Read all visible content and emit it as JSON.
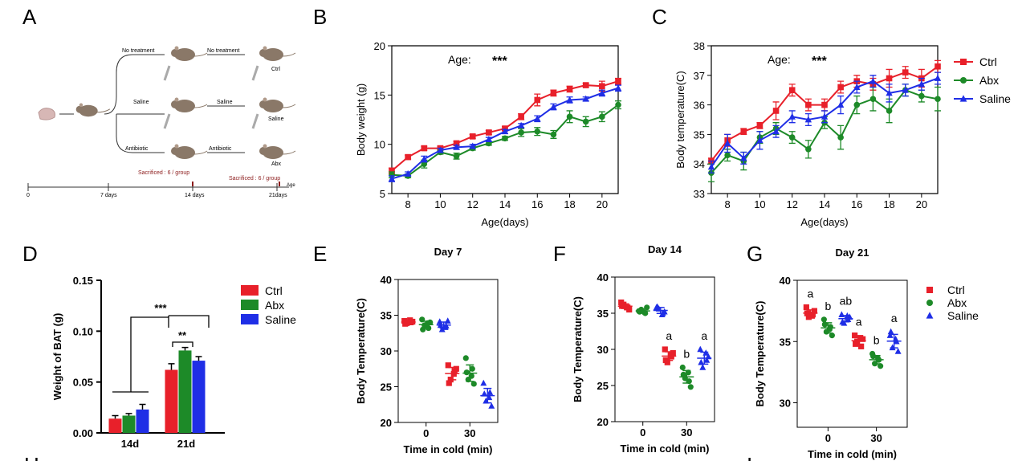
{
  "colors": {
    "ctrl": "#e8202a",
    "abx": "#1d8a28",
    "saline": "#1f2ee6",
    "axis": "#000000",
    "mouse": "#8a7868",
    "sac": "#8b1a1a"
  },
  "panels": {
    "A": "A",
    "B": "B",
    "C": "C",
    "D": "D",
    "E": "E",
    "F": "F",
    "G": "G",
    "H": "H",
    "I": "I"
  },
  "schematic": {
    "labels": {
      "no_treatment": "No treatment",
      "saline": "Saline",
      "antibiotic": "Antibiotic",
      "ctrl": "Ctrl",
      "abx": "Abx",
      "age": "Age"
    },
    "sacrificed": "Sacrificed : 6 / group",
    "timeline": [
      "0",
      "7 days",
      "14 days",
      "21days"
    ]
  },
  "chart_data": [
    {
      "id": "B",
      "type": "line",
      "xlabel": "Age(days)",
      "ylabel": "Body weight (g)",
      "xlim": [
        7,
        21
      ],
      "ylim": [
        5,
        20
      ],
      "xticks": [
        8,
        10,
        12,
        14,
        16,
        18,
        20
      ],
      "yticks": [
        5,
        10,
        15,
        20
      ],
      "annotation": {
        "label": "Age:",
        "stars": "***"
      },
      "x": [
        7,
        8,
        9,
        10,
        11,
        12,
        13,
        14,
        15,
        16,
        17,
        18,
        19,
        20,
        21
      ],
      "series": [
        {
          "name": "Ctrl",
          "values": [
            7.3,
            8.7,
            9.6,
            9.6,
            10.1,
            10.8,
            11.2,
            11.6,
            12.8,
            14.5,
            15.2,
            15.6,
            16.0,
            15.9,
            16.4
          ],
          "err": [
            0.3,
            0.2,
            0.2,
            0.2,
            0.2,
            0.2,
            0.2,
            0.2,
            0.3,
            0.6,
            0.3,
            0.3,
            0.2,
            0.5,
            0.3
          ]
        },
        {
          "name": "Abx",
          "values": [
            6.9,
            6.8,
            8.0,
            9.2,
            8.8,
            9.6,
            10.1,
            10.6,
            11.2,
            11.3,
            11.0,
            12.8,
            12.3,
            12.8,
            14.0
          ],
          "err": [
            0.3,
            0.2,
            0.4,
            0.2,
            0.3,
            0.2,
            0.2,
            0.2,
            0.4,
            0.4,
            0.4,
            0.6,
            0.5,
            0.5,
            0.4
          ]
        },
        {
          "name": "Saline",
          "values": [
            6.5,
            7.0,
            8.5,
            9.4,
            9.7,
            9.8,
            10.5,
            11.3,
            11.9,
            12.6,
            13.8,
            14.5,
            14.6,
            15.2,
            15.7
          ],
          "err": [
            0.3,
            0.2,
            0.3,
            0.2,
            0.2,
            0.2,
            0.2,
            0.2,
            0.2,
            0.3,
            0.3,
            0.3,
            0.2,
            0.3,
            0.3
          ]
        }
      ]
    },
    {
      "id": "C",
      "type": "line",
      "xlabel": "Age(days)",
      "ylabel": "Body temperature(C)",
      "xlim": [
        7,
        21
      ],
      "ylim": [
        33,
        38
      ],
      "xticks": [
        8,
        10,
        12,
        14,
        16,
        18,
        20
      ],
      "yticks": [
        33,
        34,
        35,
        36,
        37,
        38
      ],
      "annotation": {
        "label": "Age:",
        "stars": "***"
      },
      "legend": [
        "Ctrl",
        "Abx",
        "Saline"
      ],
      "x": [
        7,
        8,
        9,
        10,
        11,
        12,
        13,
        14,
        15,
        16,
        17,
        18,
        19,
        20,
        21
      ],
      "series": [
        {
          "name": "Ctrl",
          "values": [
            34.1,
            34.8,
            35.1,
            35.3,
            35.8,
            36.5,
            36.0,
            36.0,
            36.6,
            36.8,
            36.7,
            36.9,
            37.1,
            36.9,
            37.3
          ],
          "err": [
            0.1,
            0.2,
            0.1,
            0.1,
            0.3,
            0.2,
            0.2,
            0.2,
            0.2,
            0.2,
            0.2,
            0.3,
            0.2,
            0.3,
            0.2
          ]
        },
        {
          "name": "Abx",
          "values": [
            33.7,
            34.3,
            34.1,
            34.9,
            35.2,
            34.9,
            34.5,
            35.4,
            34.9,
            36.0,
            36.2,
            35.8,
            36.5,
            36.3,
            36.2
          ],
          "err": [
            0.3,
            0.2,
            0.3,
            0.2,
            0.2,
            0.2,
            0.3,
            0.2,
            0.4,
            0.3,
            0.4,
            0.4,
            0.2,
            0.2,
            0.4
          ]
        },
        {
          "name": "Saline",
          "values": [
            33.9,
            34.7,
            34.2,
            34.8,
            35.1,
            35.6,
            35.5,
            35.6,
            36.0,
            36.6,
            36.8,
            36.4,
            36.5,
            36.7,
            36.9
          ],
          "err": [
            0.2,
            0.3,
            0.2,
            0.3,
            0.2,
            0.2,
            0.2,
            0.2,
            0.3,
            0.2,
            0.2,
            0.3,
            0.2,
            0.2,
            0.2
          ]
        }
      ]
    },
    {
      "id": "D",
      "type": "bar",
      "ylabel": "Weight of BAT (g)",
      "categories": [
        "14d",
        "21d"
      ],
      "ylim": [
        0,
        0.15
      ],
      "yticks": [
        0,
        0.05,
        0.1,
        0.15
      ],
      "ytick_labels": [
        "0.00",
        "0.05",
        "0.10",
        "0.15"
      ],
      "legend": [
        "Ctrl",
        "Abx",
        "Saline"
      ],
      "series": [
        {
          "name": "Ctrl",
          "values": [
            0.014,
            0.062
          ],
          "err": [
            0.003,
            0.006
          ]
        },
        {
          "name": "Abx",
          "values": [
            0.017,
            0.081
          ],
          "err": [
            0.002,
            0.003
          ]
        },
        {
          "name": "Saline",
          "values": [
            0.023,
            0.071
          ],
          "err": [
            0.005,
            0.004
          ]
        }
      ],
      "significance": [
        "***",
        "**"
      ]
    },
    {
      "id": "E",
      "type": "scatter",
      "title": "Day 7",
      "xlabel": "Time in cold (min)",
      "ylabel": "Body Temperature(C)",
      "categories": [
        "0",
        "30"
      ],
      "ylim": [
        20,
        40
      ],
      "yticks": [
        20,
        25,
        30,
        35,
        40
      ],
      "groups": [
        {
          "name": "Ctrl",
          "points": [
            [
              34.2,
              34.0,
              33.9,
              34.1,
              33.8,
              34.3
            ],
            [
              28.0,
              27.2,
              26.0,
              27.5,
              25.5,
              26.8
            ]
          ],
          "letters": [
            "",
            ""
          ]
        },
        {
          "name": "Abx",
          "points": [
            [
              34.4,
              33.2,
              33.6,
              34.0,
              33.0,
              33.9
            ],
            [
              29.0,
              27.5,
              26.0,
              25.4,
              27.0,
              26.5
            ]
          ],
          "letters": [
            "",
            ""
          ]
        },
        {
          "name": "Saline",
          "points": [
            [
              34.1,
              33.5,
              33.0,
              34.2,
              33.6,
              33.3
            ],
            [
              25.5,
              24.2,
              23.0,
              22.3,
              24.0,
              23.5
            ]
          ],
          "letters": [
            "",
            ""
          ]
        }
      ]
    },
    {
      "id": "F",
      "type": "scatter",
      "title": "Day 14",
      "xlabel": "Time in cold (min)",
      "ylabel": "Body Temperature(C)",
      "categories": [
        "0",
        "30"
      ],
      "ylim": [
        20,
        40
      ],
      "yticks": [
        20,
        25,
        30,
        35,
        40
      ],
      "groups": [
        {
          "name": "Ctrl",
          "points": [
            [
              36.5,
              35.8,
              36.2,
              35.5,
              36.0,
              35.8
            ],
            [
              30.0,
              29.0,
              28.2,
              29.5,
              28.5,
              29.2
            ]
          ],
          "letters": [
            "",
            "a"
          ]
        },
        {
          "name": "Abx",
          "points": [
            [
              35.3,
              35.0,
              35.5,
              35.8,
              35.2,
              35.1
            ],
            [
              27.5,
              25.6,
              26.0,
              24.8,
              26.5,
              26.8
            ]
          ],
          "letters": [
            "",
            "b"
          ]
        },
        {
          "name": "Saline",
          "points": [
            [
              35.8,
              35.0,
              35.6,
              35.2,
              35.9,
              34.8
            ],
            [
              30.0,
              28.5,
              27.5,
              29.0,
              28.2,
              29.5
            ]
          ],
          "letters": [
            "",
            "a"
          ]
        }
      ]
    },
    {
      "id": "G",
      "type": "scatter",
      "title": "Day 21",
      "xlabel": "Time in cold (min)",
      "ylabel": "Body Temperature(C)",
      "categories": [
        "0",
        "30"
      ],
      "ylim": [
        28,
        40
      ],
      "yticks": [
        30,
        35,
        40
      ],
      "legend": [
        "Ctrl",
        "Abx",
        "Saline"
      ],
      "groups": [
        {
          "name": "Ctrl",
          "points": [
            [
              37.8,
              37.2,
              37.0,
              37.5,
              37.3,
              37.1
            ],
            [
              35.5,
              34.6,
              35.0,
              35.2,
              34.8,
              35.3
            ]
          ],
          "letters": [
            "a",
            "a"
          ]
        },
        {
          "name": "Abx",
          "points": [
            [
              36.8,
              36.2,
              35.8,
              35.5,
              36.4,
              36.0
            ],
            [
              34.0,
              33.5,
              33.2,
              33.0,
              33.8,
              33.6
            ]
          ],
          "letters": [
            "b",
            "b"
          ]
        },
        {
          "name": "Saline",
          "points": [
            [
              37.2,
              36.8,
              36.5,
              37.0,
              36.6,
              37.1
            ],
            [
              35.5,
              35.0,
              34.5,
              34.2,
              35.8,
              35.2
            ]
          ],
          "letters": [
            "ab",
            "a"
          ]
        }
      ]
    }
  ]
}
